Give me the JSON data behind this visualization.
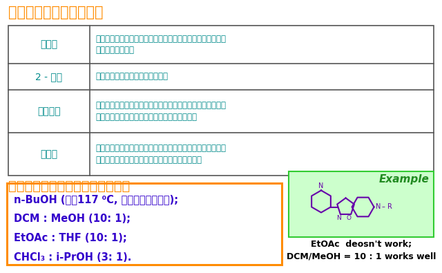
{
  "title1": "几种特殊的有机萃取溶剂",
  "title1_color": "#FF8C00",
  "title2": "常用于萃取大极性物质的有机溶剂",
  "title2_color": "#FF8C00",
  "table_border_color": "#555555",
  "table_name_color": "#008B8B",
  "table_text_color": "#008B8B",
  "rows": [
    {
      "name": "正丁醇",
      "desc": "不溶于水，具有小分子醇和大分子醇的共同特点。常用从水中\n萃取大极性物质。"
    },
    {
      "name": "2 - 丁醇",
      "desc": "适宜从缓冲液中提取水溶性物质。"
    },
    {
      "name": "乙酸丁酯",
      "desc": "性质介于小分子和大分子酯之间，在水中的溶解度极小，可从\n水中萃取有机化合物，尤其是氨基酸类化合物。"
    },
    {
      "name": "异丙醚",
      "desc": "性质介于小分子和大分子醚之间，极性相对较小，在水中的溶\n解度较小，很适宜从磷酸盐缓冲溶液中提取羧酸。"
    }
  ],
  "box_border_color": "#FF8C00",
  "box_text_color": "#3300CC",
  "box_lines": [
    "n-BuOH (沸点117 ⁰C, 油泵旋蒸方可除去);",
    "DCM : MeOH (10: 1);",
    "EtOAc : THF (10: 1);",
    "CHCl₃ : i-PrOH (3: 1)."
  ],
  "example_label": "Example",
  "example_label_color": "#228B22",
  "caption_text1": "EtOAc  deosn't work;",
  "caption_text2": "DCM/MeOH = 10 : 1 works well",
  "caption_color": "#000000",
  "bg_color": "#FFFFFF",
  "struct_color": "#6600AA",
  "green_box_bg": "#CCFFCC",
  "green_box_border": "#33CC33"
}
